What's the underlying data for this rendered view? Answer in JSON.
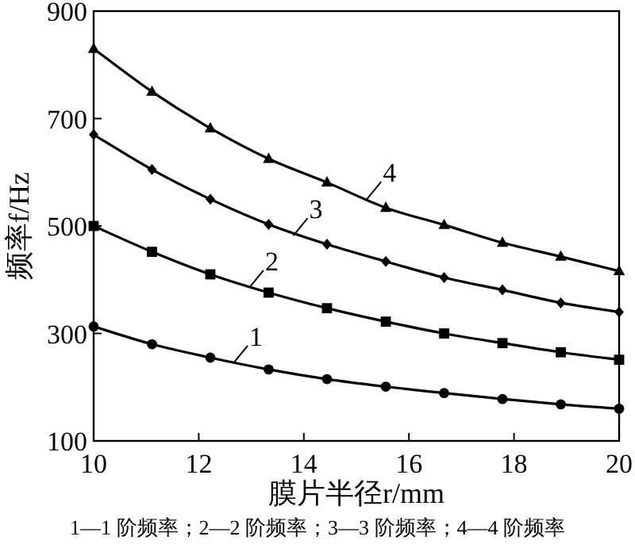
{
  "chart_data": {
    "type": "line",
    "xlabel": "膜片半径r/mm",
    "ylabel": "频率f/Hz",
    "x": [
      10,
      11.11,
      12.22,
      13.33,
      14.44,
      15.56,
      16.67,
      17.78,
      18.89,
      20
    ],
    "xlim": [
      10,
      20
    ],
    "xticks": [
      10,
      12,
      14,
      16,
      18,
      20
    ],
    "ylim": [
      100,
      900
    ],
    "yticks": [
      100,
      300,
      500,
      700,
      900
    ],
    "grid": false,
    "series": [
      {
        "color": "#000000",
        "marker": "circle",
        "values": [
          313,
          280,
          255,
          233,
          215,
          201,
          189,
          178,
          168,
          160
        ]
      },
      {
        "color": "#000000",
        "marker": "square",
        "values": [
          500,
          452,
          410,
          376,
          347,
          322,
          300,
          282,
          265,
          251
        ]
      },
      {
        "color": "#000000",
        "marker": "diamond",
        "values": [
          670,
          605,
          550,
          503,
          466,
          434,
          404,
          381,
          357,
          340
        ]
      },
      {
        "color": "#000000",
        "marker": "triangle",
        "values": [
          830,
          750,
          682,
          625,
          581,
          534,
          502,
          469,
          443,
          416
        ]
      }
    ],
    "annotations": [
      {
        "text": "1",
        "x": 12.66,
        "y": 245
      },
      {
        "text": "2",
        "x": 12.96,
        "y": 385
      },
      {
        "text": "3",
        "x": 13.8,
        "y": 482
      },
      {
        "text": "4",
        "x": 15.2,
        "y": 550
      },
      "1—1 阶频率；2—2 阶频率；3—3 阶频率；4—4 阶频率"
    ]
  }
}
